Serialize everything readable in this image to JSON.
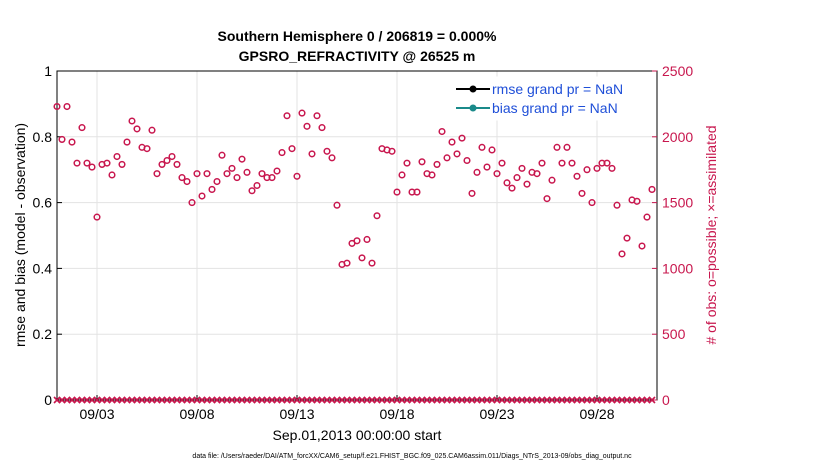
{
  "chart_data": {
    "type": "scatter",
    "title": [
      "Southern Hemisphere 0 / 206819 = 0.000%",
      "GPSRO_REFRACTIVITY @ 26525 m"
    ],
    "xlabel": "Sep.01,2013 00:00:00 start",
    "ylabel_left": "rmse and bias (model - observation)",
    "ylabel_right": "# of obs: o=possible; ×=assimilated",
    "x_tick_labels": [
      "09/03",
      "09/08",
      "09/13",
      "09/18",
      "09/23",
      "09/28"
    ],
    "x_tick_days": [
      3,
      8,
      13,
      18,
      23,
      28
    ],
    "xlim_days": [
      1,
      31
    ],
    "ylim_left": [
      0,
      1
    ],
    "y_ticks_left": [
      "0",
      "0.2",
      "0.4",
      "0.6",
      "0.8",
      "1"
    ],
    "ylim_right": [
      0,
      2500
    ],
    "y_ticks_right": [
      "0",
      "500",
      "1000",
      "1500",
      "2000",
      "2500"
    ],
    "grid": true,
    "legend_position": "top-right",
    "legend": [
      {
        "label": "rmse grand pr = NaN",
        "color": "#000000"
      },
      {
        "label": "bias grand pr = NaN",
        "color": "#1a8a8a"
      }
    ],
    "series": [
      {
        "name": "possible",
        "marker": "circle",
        "color": "#c8174e",
        "x_days": [
          1.0,
          1.25,
          1.5,
          1.75,
          2.0,
          2.25,
          2.5,
          2.75,
          3.0,
          3.25,
          3.5,
          3.75,
          4.0,
          4.25,
          4.5,
          4.75,
          5.0,
          5.25,
          5.5,
          5.75,
          6.0,
          6.25,
          6.5,
          6.75,
          7.0,
          7.25,
          7.5,
          7.75,
          8.0,
          8.25,
          8.5,
          8.75,
          9.0,
          9.25,
          9.5,
          9.75,
          10.0,
          10.25,
          10.5,
          10.75,
          11.0,
          11.25,
          11.5,
          11.75,
          12.0,
          12.25,
          12.5,
          12.75,
          13.0,
          13.25,
          13.5,
          13.75,
          14.0,
          14.25,
          14.5,
          14.75,
          15.0,
          15.25,
          15.5,
          15.75,
          16.0,
          16.25,
          16.5,
          16.75,
          17.0,
          17.25,
          17.5,
          17.75,
          18.0,
          18.25,
          18.5,
          18.75,
          19.0,
          19.25,
          19.5,
          19.75,
          20.0,
          20.25,
          20.5,
          20.75,
          21.0,
          21.25,
          21.5,
          21.75,
          22.0,
          22.25,
          22.5,
          22.75,
          23.0,
          23.25,
          23.5,
          23.75,
          24.0,
          24.25,
          24.5,
          24.75,
          25.0,
          25.25,
          25.5,
          25.75,
          26.0,
          26.25,
          26.5,
          26.75,
          27.0,
          27.25,
          27.5,
          27.75,
          28.0,
          28.25,
          28.5,
          28.75,
          29.0,
          29.25,
          29.5,
          29.75,
          30.0,
          30.25,
          30.5,
          30.75
        ],
        "values": [
          2230,
          1980,
          2230,
          1960,
          1800,
          2070,
          1800,
          1770,
          1390,
          1790,
          1800,
          1710,
          1850,
          1790,
          1960,
          2120,
          2060,
          1920,
          1910,
          2050,
          1720,
          1790,
          1820,
          1850,
          1790,
          1690,
          1660,
          1500,
          1720,
          1550,
          1720,
          1600,
          1660,
          1860,
          1720,
          1760,
          1690,
          1830,
          1730,
          1590,
          1630,
          1720,
          1690,
          1690,
          1740,
          1880,
          2160,
          1910,
          1700,
          2180,
          2080,
          1870,
          2160,
          2070,
          1890,
          1840,
          1480,
          1030,
          1040,
          1190,
          1210,
          1080,
          1220,
          1040,
          1400,
          1910,
          1900,
          1890,
          1580,
          1710,
          1800,
          1580,
          1580,
          1810,
          1720,
          1710,
          1790,
          2040,
          1840,
          1960,
          1870,
          1990,
          1820,
          1570,
          1730,
          1920,
          1770,
          1900,
          1720,
          1800,
          1650,
          1610,
          1690,
          1760,
          1640,
          1730,
          1720,
          1800,
          1530,
          1670,
          1920,
          1800,
          1920,
          1800,
          1700,
          1570,
          1750,
          1500,
          1760,
          1800,
          1800,
          1760,
          1480,
          1110,
          1230,
          1520,
          1510,
          1170,
          1390,
          1600
        ]
      },
      {
        "name": "assimilated",
        "marker": "x",
        "color": "#c8174e",
        "x_days": [
          1.0,
          1.25,
          1.5,
          1.75,
          2.0,
          2.25,
          2.5,
          2.75,
          3.0,
          3.25,
          3.5,
          3.75,
          4.0,
          4.25,
          4.5,
          4.75,
          5.0,
          5.25,
          5.5,
          5.75,
          6.0,
          6.25,
          6.5,
          6.75,
          7.0,
          7.25,
          7.5,
          7.75,
          8.0,
          8.25,
          8.5,
          8.75,
          9.0,
          9.25,
          9.5,
          9.75,
          10.0,
          10.25,
          10.5,
          10.75,
          11.0,
          11.25,
          11.5,
          11.75,
          12.0,
          12.25,
          12.5,
          12.75,
          13.0,
          13.25,
          13.5,
          13.75,
          14.0,
          14.25,
          14.5,
          14.75,
          15.0,
          15.25,
          15.5,
          15.75,
          16.0,
          16.25,
          16.5,
          16.75,
          17.0,
          17.25,
          17.5,
          17.75,
          18.0,
          18.25,
          18.5,
          18.75,
          19.0,
          19.25,
          19.5,
          19.75,
          20.0,
          20.25,
          20.5,
          20.75,
          21.0,
          21.25,
          21.5,
          21.75,
          22.0,
          22.25,
          22.5,
          22.75,
          23.0,
          23.25,
          23.5,
          23.75,
          24.0,
          24.25,
          24.5,
          24.75,
          25.0,
          25.25,
          25.5,
          25.75,
          26.0,
          26.25,
          26.5,
          26.75,
          27.0,
          27.25,
          27.5,
          27.75,
          28.0,
          28.25,
          28.5,
          28.75,
          29.0,
          29.25,
          29.5,
          29.75,
          30.0,
          30.25,
          30.5,
          30.75
        ],
        "values": [
          0,
          0,
          0,
          0,
          0,
          0,
          0,
          0,
          0,
          0,
          0,
          0,
          0,
          0,
          0,
          0,
          0,
          0,
          0,
          0,
          0,
          0,
          0,
          0,
          0,
          0,
          0,
          0,
          0,
          0,
          0,
          0,
          0,
          0,
          0,
          0,
          0,
          0,
          0,
          0,
          0,
          0,
          0,
          0,
          0,
          0,
          0,
          0,
          0,
          0,
          0,
          0,
          0,
          0,
          0,
          0,
          0,
          0,
          0,
          0,
          0,
          0,
          0,
          0,
          0,
          0,
          0,
          0,
          0,
          0,
          0,
          0,
          0,
          0,
          0,
          0,
          0,
          0,
          0,
          0,
          0,
          0,
          0,
          0,
          0,
          0,
          0,
          0,
          0,
          0,
          0,
          0,
          0,
          0,
          0,
          0,
          0,
          0,
          0,
          0,
          0,
          0,
          0,
          0,
          0,
          0,
          0,
          0,
          0,
          0,
          0,
          0,
          0,
          0,
          0,
          0,
          0,
          0,
          0,
          0
        ]
      }
    ],
    "footnote": "data file: /Users/raeder/DAI/ATM_forcXX/CAM6_setup/f.e21.FHIST_BGC.f09_025.CAM6assim.011/Diags_NTrS_2013-09/obs_diag_output.nc"
  }
}
